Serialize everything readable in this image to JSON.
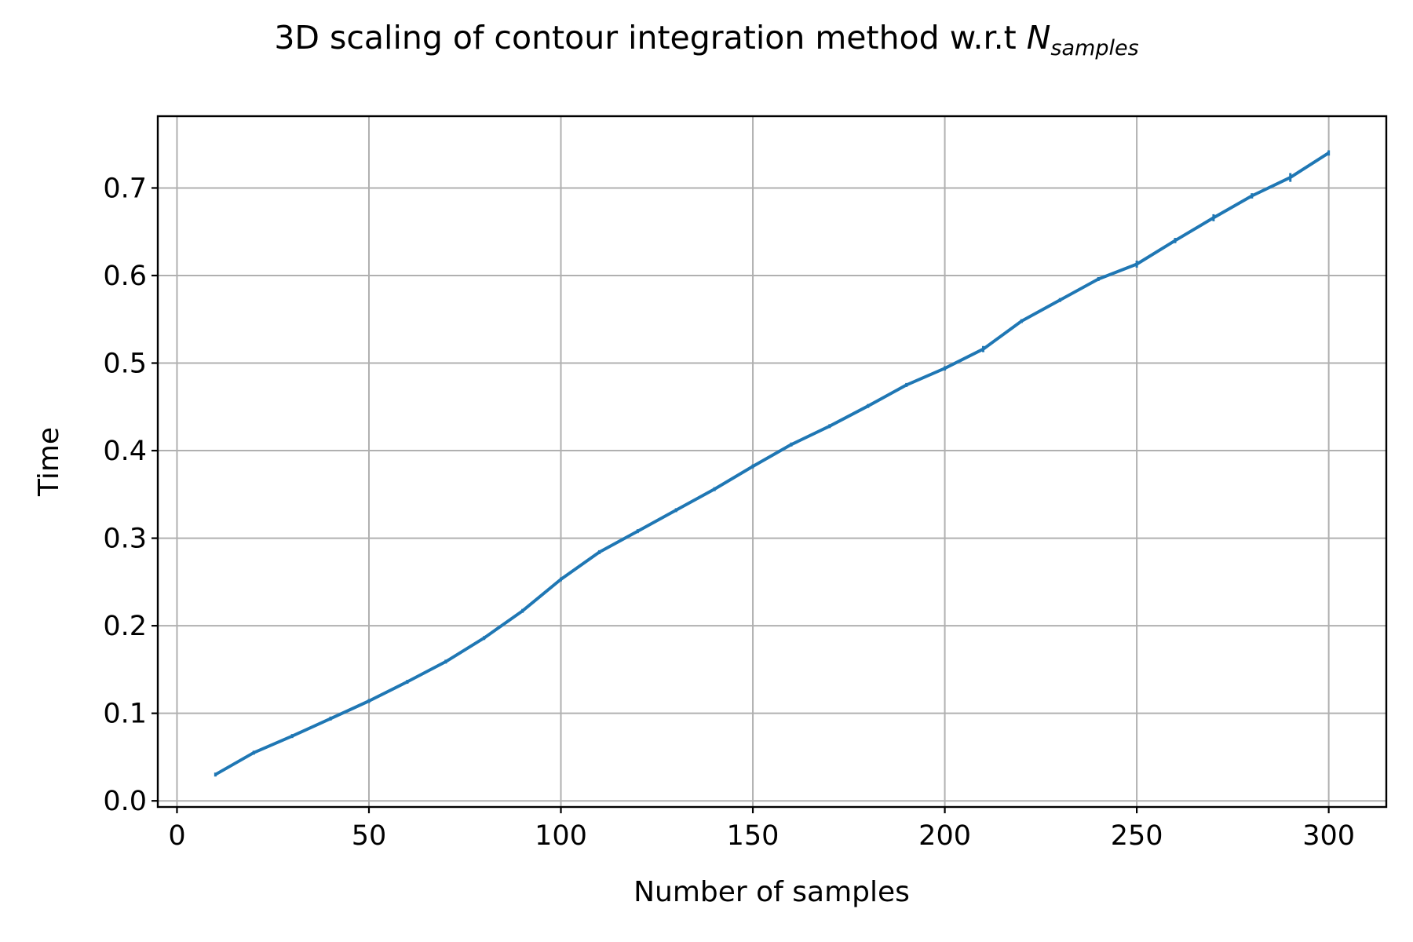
{
  "chart_data": {
    "type": "line",
    "title": "3D scaling of contour integration method w.r.t ",
    "title_math_base": "N",
    "title_math_sub": "samples",
    "xlabel": "Number of samples",
    "ylabel": "Time",
    "xlim": [
      -5,
      315
    ],
    "ylim": [
      -0.007,
      0.782
    ],
    "xticks": [
      0,
      50,
      100,
      150,
      200,
      250,
      300
    ],
    "xtick_labels": [
      "0",
      "50",
      "100",
      "150",
      "200",
      "250",
      "300"
    ],
    "yticks": [
      0.0,
      0.1,
      0.2,
      0.3,
      0.4,
      0.5,
      0.6,
      0.7
    ],
    "ytick_labels": [
      "0.0",
      "0.1",
      "0.2",
      "0.3",
      "0.4",
      "0.5",
      "0.6",
      "0.7"
    ],
    "grid": true,
    "series": [
      {
        "color": "#1f77b4",
        "x": [
          10,
          20,
          30,
          40,
          50,
          60,
          70,
          80,
          90,
          100,
          110,
          120,
          130,
          140,
          150,
          160,
          170,
          180,
          190,
          200,
          210,
          220,
          230,
          240,
          250,
          260,
          270,
          280,
          290,
          300
        ],
        "y": [
          0.03,
          0.055,
          0.074,
          0.094,
          0.114,
          0.136,
          0.159,
          0.186,
          0.217,
          0.253,
          0.284,
          0.308,
          0.332,
          0.356,
          0.382,
          0.407,
          0.428,
          0.451,
          0.475,
          0.494,
          0.516,
          0.548,
          0.572,
          0.596,
          0.613,
          0.64,
          0.666,
          0.691,
          0.712,
          0.74
        ],
        "yerr": [
          0.001,
          0.001,
          0.001,
          0.001,
          0.001,
          0.001,
          0.001,
          0.0015,
          0.001,
          0.001,
          0.0015,
          0.001,
          0.001,
          0.002,
          0.001,
          0.001,
          0.0015,
          0.002,
          0.001,
          0.0025,
          0.0035,
          0.002,
          0.0015,
          0.002,
          0.004,
          0.003,
          0.004,
          0.003,
          0.005,
          0.003
        ]
      }
    ]
  }
}
